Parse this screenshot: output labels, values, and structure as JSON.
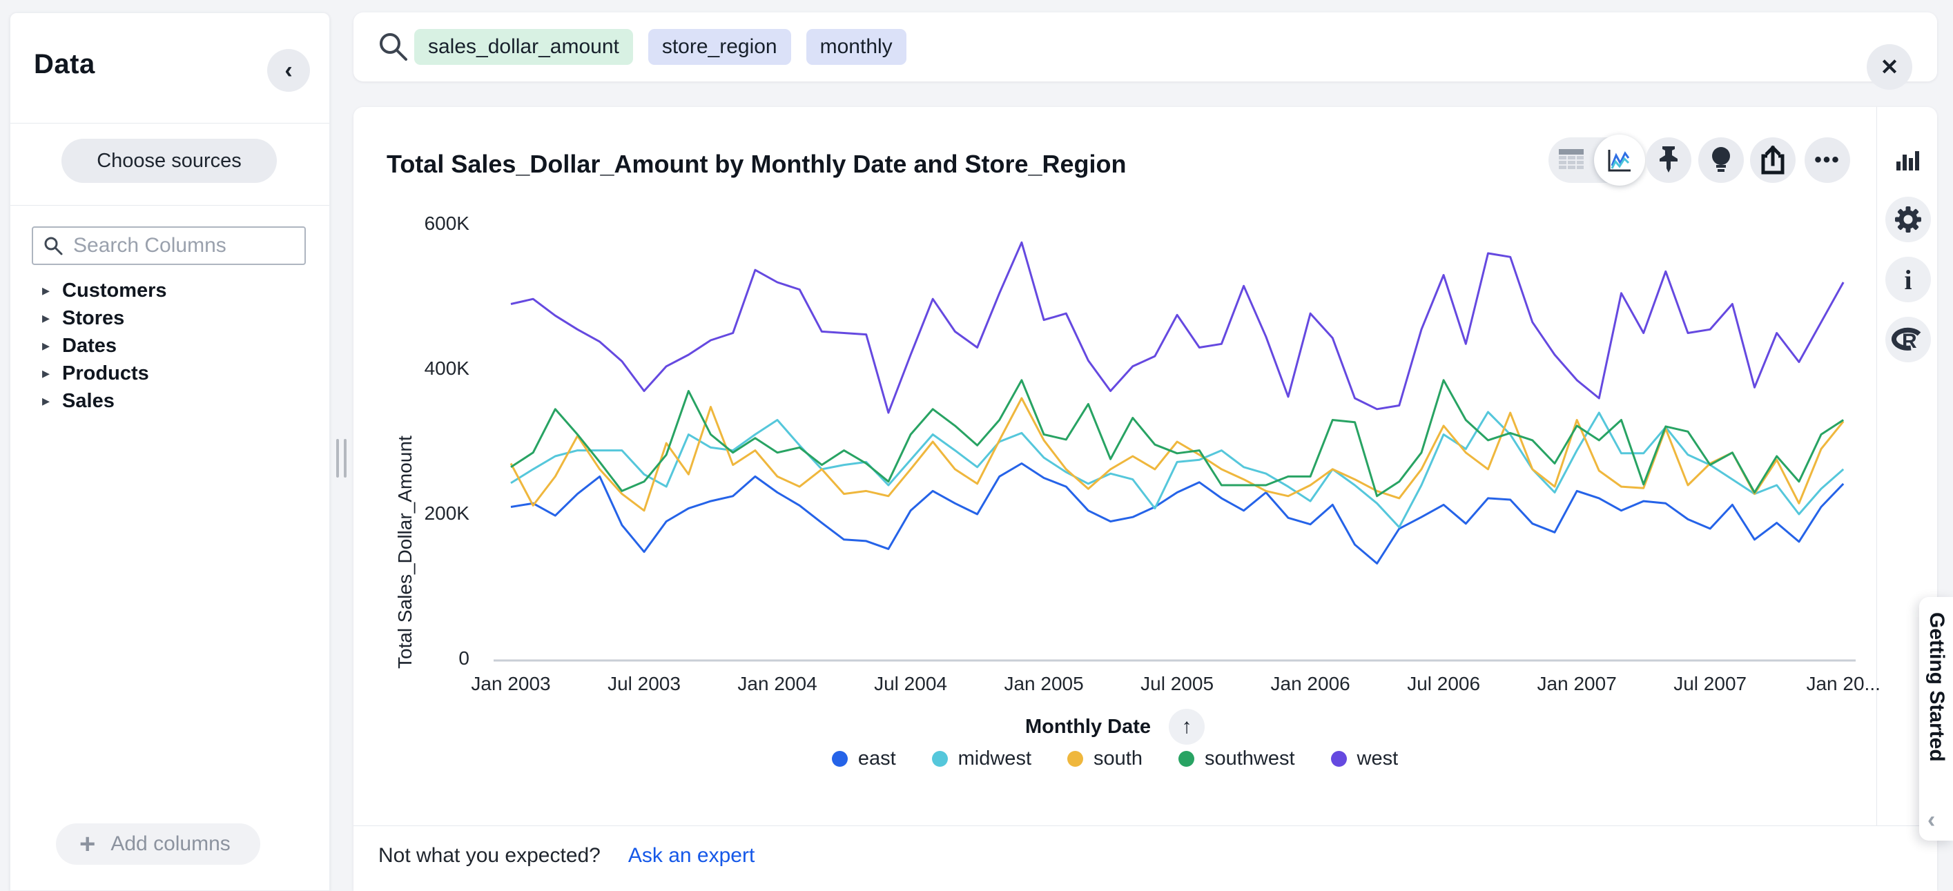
{
  "sidebar": {
    "title": "Data",
    "collapse_icon": "‹",
    "choose_sources_label": "Choose sources",
    "search_placeholder": "Search Columns",
    "tree_items": [
      "Customers",
      "Stores",
      "Dates",
      "Products",
      "Sales"
    ],
    "add_columns_label": "Add columns"
  },
  "search_bar": {
    "tokens": [
      {
        "label": "sales_dollar_amount",
        "type": "measure",
        "bg": "#d8f1e3"
      },
      {
        "label": "store_region",
        "type": "attribute",
        "bg": "#dbe1f8"
      },
      {
        "label": "monthly",
        "type": "attribute",
        "bg": "#dbe1f8"
      }
    ],
    "close_icon": "✕"
  },
  "toolbar": {
    "icons": [
      "table-view",
      "chart-view-selected",
      "pin",
      "insights-bulb",
      "share",
      "more-options"
    ],
    "more_label": "•••"
  },
  "right_rail": {
    "icons": [
      "change-visualization",
      "settings-gear",
      "info",
      "r-analysis"
    ],
    "info_glyph": "i",
    "r_glyph": "R"
  },
  "chart_card": {
    "title": "Total Sales_Dollar_Amount by Monthly Date and Store_Region"
  },
  "footer": {
    "question": "Not what you expected?",
    "link_label": "Ask an expert"
  },
  "getting_started": {
    "label": "Getting Started",
    "chevron": "‹"
  },
  "x_axis_sort_icon": "↑",
  "chart_data": {
    "type": "line",
    "title": "Total Sales_Dollar_Amount by Monthly Date and Store_Region",
    "xlabel": "Monthly Date",
    "ylabel": "Total Sales_Dollar_Amount",
    "x_interval": "month",
    "x_start": "Jan 2003",
    "x_end": "Jan 2008",
    "x_count": 61,
    "x_tick_labels": [
      "Jan 2003",
      "Jul 2003",
      "Jan 2004",
      "Jul 2004",
      "Jan 2005",
      "Jul 2005",
      "Jan 2006",
      "Jul 2006",
      "Jan 2007",
      "Jul 2007",
      "Jan 20..."
    ],
    "y_ticks": [
      {
        "label": "0",
        "value": 0
      },
      {
        "label": "200K",
        "value": 200
      },
      {
        "label": "400K",
        "value": 400
      },
      {
        "label": "600K",
        "value": 600
      }
    ],
    "ylim_k": [
      0,
      600
    ],
    "values_unit": "K (thousands of dollars), estimated from pixels",
    "grid": false,
    "legend_position": "bottom",
    "series": [
      {
        "name": "east",
        "color": "#2563e8",
        "values": [
          210,
          215,
          198,
          228,
          252,
          185,
          148,
          190,
          208,
          218,
          225,
          252,
          230,
          212,
          188,
          165,
          163,
          152,
          205,
          232,
          215,
          200,
          252,
          270,
          250,
          238,
          205,
          190,
          196,
          210,
          230,
          244,
          222,
          205,
          230,
          195,
          186,
          213,
          158,
          132,
          180,
          196,
          213,
          187,
          222,
          220,
          187,
          175,
          232,
          222,
          205,
          218,
          215,
          193,
          180,
          213,
          165,
          188,
          162,
          210,
          242
        ]
      },
      {
        "name": "midwest",
        "color": "#55c7db",
        "values": [
          243,
          262,
          280,
          288,
          288,
          288,
          255,
          238,
          310,
          292,
          288,
          310,
          330,
          295,
          262,
          268,
          272,
          240,
          275,
          310,
          288,
          265,
          300,
          312,
          278,
          258,
          242,
          256,
          248,
          208,
          272,
          275,
          288,
          265,
          256,
          238,
          218,
          262,
          240,
          215,
          182,
          240,
          310,
          290,
          341,
          310,
          262,
          230,
          288,
          340,
          284,
          284,
          320,
          282,
          268,
          248,
          228,
          240,
          200,
          235,
          262
        ]
      },
      {
        "name": "south",
        "color": "#efb73d",
        "values": [
          270,
          212,
          252,
          308,
          262,
          228,
          205,
          298,
          255,
          348,
          268,
          288,
          252,
          238,
          262,
          228,
          232,
          225,
          262,
          300,
          262,
          242,
          302,
          360,
          302,
          262,
          235,
          262,
          280,
          262,
          300,
          282,
          262,
          248,
          232,
          225,
          240,
          262,
          248,
          232,
          222,
          262,
          322,
          285,
          262,
          340,
          262,
          238,
          330,
          260,
          238,
          236,
          318,
          240,
          270,
          285,
          228,
          275,
          215,
          290,
          328
        ]
      },
      {
        "name": "southwest",
        "color": "#28a363",
        "values": [
          265,
          285,
          345,
          310,
          272,
          232,
          245,
          282,
          370,
          310,
          285,
          305,
          285,
          292,
          268,
          288,
          270,
          245,
          310,
          345,
          322,
          295,
          330,
          385,
          310,
          303,
          352,
          276,
          333,
          296,
          284,
          288,
          240,
          240,
          240,
          252,
          252,
          330,
          327,
          225,
          245,
          285,
          385,
          330,
          302,
          312,
          302,
          270,
          322,
          302,
          330,
          241,
          321,
          314,
          268,
          285,
          230,
          280,
          245,
          310,
          330
        ]
      },
      {
        "name": "west",
        "color": "#6549e0",
        "values": [
          490,
          497,
          474,
          455,
          438,
          411,
          370,
          404,
          420,
          440,
          450,
          537,
          520,
          510,
          452,
          450,
          448,
          340,
          420,
          497,
          452,
          430,
          505,
          575,
          468,
          477,
          412,
          370,
          404,
          418,
          475,
          430,
          435,
          515,
          445,
          362,
          477,
          443,
          360,
          345,
          350,
          455,
          530,
          435,
          560,
          555,
          465,
          420,
          385,
          360,
          505,
          450,
          535,
          450,
          455,
          490,
          375,
          450,
          410,
          465,
          520
        ]
      }
    ]
  }
}
